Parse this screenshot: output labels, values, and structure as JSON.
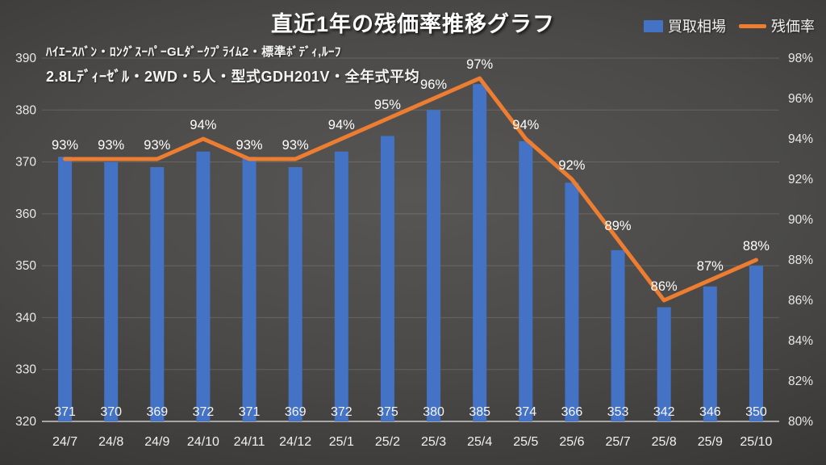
{
  "title": "直近1年の残価率推移グラフ",
  "subtitle": {
    "line1": "ﾊｲｴｰｽﾊﾞﾝ・ﾛﾝｸﾞｽｰﾊﾟｰGLﾀﾞｰｸﾌﾟﾗｲﾑ2・標準ﾎﾞﾃﾞｨ,ﾙｰﾌ",
    "line2": "2.8Lﾃﾞｨｰｾﾞﾙ・2WD・5人・型式GDH201V・全年式平均"
  },
  "colors": {
    "bar": "#4472C4",
    "line": "#ED7D31",
    "text": "#F2F2F2",
    "grid": "rgba(255,255,255,0.14)",
    "axis_line": "#C9C9C9",
    "background_center": "#575654",
    "background_edge": "#2A2929"
  },
  "chart_data": {
    "type": "bar",
    "combo": "bar + line (dual axis)",
    "title": "直近1年の残価率推移グラフ",
    "categories": [
      "24/7",
      "24/8",
      "24/9",
      "24/10",
      "24/11",
      "24/12",
      "25/1",
      "25/2",
      "25/3",
      "25/4",
      "25/5",
      "25/6",
      "25/7",
      "25/8",
      "25/9",
      "25/10"
    ],
    "series": [
      {
        "name": "買取相場",
        "type": "bar",
        "axis": "left",
        "color": "#4472C4",
        "values": [
          371,
          370,
          369,
          372,
          371,
          369,
          372,
          375,
          380,
          385,
          374,
          366,
          353,
          342,
          346,
          350
        ],
        "data_label_position": "inside-base"
      },
      {
        "name": "残価率",
        "type": "line",
        "axis": "right",
        "color": "#ED7D31",
        "unit": "%",
        "values": [
          93,
          93,
          93,
          94,
          93,
          93,
          94,
          95,
          96,
          97,
          94,
          92,
          89,
          86,
          87,
          88
        ],
        "data_label_position": "above"
      }
    ],
    "left_axis": {
      "min": 320,
      "max": 390,
      "step": 10,
      "ticks": [
        390,
        380,
        370,
        360,
        350,
        340,
        330,
        320
      ]
    },
    "right_axis": {
      "min": 80,
      "max": 98,
      "step": 2,
      "ticks": [
        "98%",
        "96%",
        "94%",
        "92%",
        "90%",
        "88%",
        "86%",
        "84%",
        "82%",
        "80%"
      ]
    },
    "grid": true,
    "legend_position": "top-right"
  }
}
